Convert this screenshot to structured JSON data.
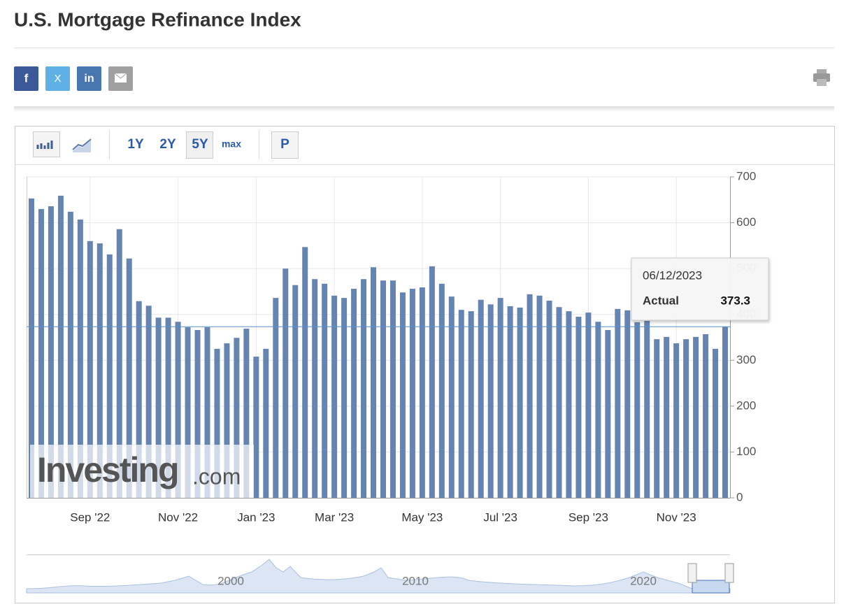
{
  "header": {
    "title": "U.S. Mortgage Refinance Index",
    "share": [
      "f",
      "X",
      "in"
    ]
  },
  "toolbar": {
    "ranges": [
      "1Y",
      "2Y",
      "5Y",
      "max"
    ],
    "button": "P"
  },
  "chart_data": {
    "type": "bar",
    "categories": [
      null,
      null,
      null,
      null,
      null,
      null,
      "Sep '22",
      null,
      null,
      null,
      null,
      null,
      null,
      null,
      null,
      "Nov '22",
      null,
      null,
      null,
      null,
      null,
      null,
      null,
      "Jan '23",
      null,
      null,
      null,
      null,
      null,
      null,
      null,
      "Mar '23",
      null,
      null,
      null,
      null,
      null,
      null,
      null,
      null,
      "May '23",
      null,
      null,
      null,
      null,
      null,
      null,
      null,
      "Jul '23",
      null,
      null,
      null,
      null,
      null,
      null,
      null,
      null,
      "Sep '23",
      null,
      null,
      null,
      null,
      null,
      null,
      null,
      null,
      "Nov '23",
      null,
      null,
      null,
      null,
      null
    ],
    "values": [
      653,
      630,
      636,
      659,
      624,
      607,
      560,
      555,
      531,
      586,
      522,
      429,
      419,
      393,
      393,
      384,
      372,
      366,
      372,
      325,
      337,
      349,
      369,
      308,
      325,
      436,
      500,
      464,
      547,
      477,
      467,
      441,
      436,
      456,
      477,
      503,
      474,
      474,
      448,
      456,
      459,
      505,
      467,
      439,
      410,
      407,
      432,
      422,
      436,
      418,
      415,
      444,
      441,
      430,
      416,
      407,
      395,
      404,
      384,
      366,
      412,
      409,
      383,
      386,
      346,
      351,
      337,
      346,
      351,
      357,
      325,
      373.3
    ],
    "color": "#6584b2",
    "ylim": [
      0,
      700
    ],
    "yticks": [
      0,
      100,
      200,
      300,
      400,
      500,
      600,
      700
    ],
    "grid": true,
    "tooltip": {
      "date": "06/12/2023",
      "label": "Actual"
    },
    "watermark": [
      "Investing",
      ".com"
    ],
    "navigator": {
      "labels": [
        "2000",
        "2010",
        "2020"
      ]
    }
  }
}
